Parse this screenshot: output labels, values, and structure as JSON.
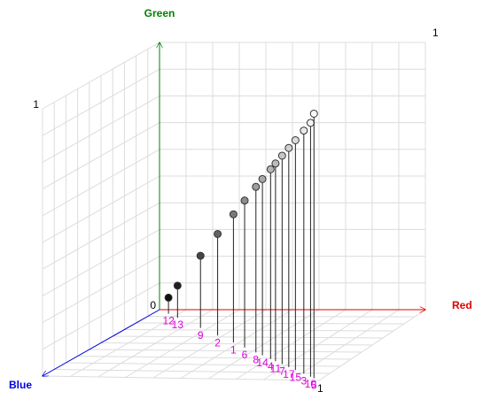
{
  "chart_data": {
    "type": "scatter3d",
    "axes": {
      "red": {
        "title": "Red",
        "color": "#e00000",
        "lim": [
          0,
          1
        ],
        "ticks": [
          1
        ]
      },
      "green": {
        "title": "Green",
        "color": "#008000",
        "lim": [
          0,
          1
        ],
        "ticks": [
          0,
          1
        ]
      },
      "blue": {
        "title": "Blue",
        "color": "#0000e0",
        "lim": [
          0,
          1
        ],
        "ticks": [
          1
        ]
      }
    },
    "label_color": "#e000e0",
    "points": [
      {
        "label": "12",
        "red": 0.06,
        "green": 0.06,
        "blue": 0.06
      },
      {
        "label": "13",
        "red": 0.12,
        "green": 0.12,
        "blue": 0.12
      },
      {
        "label": "9",
        "red": 0.27,
        "green": 0.27,
        "blue": 0.27
      },
      {
        "label": "2",
        "red": 0.38,
        "green": 0.38,
        "blue": 0.38
      },
      {
        "label": "1",
        "red": 0.48,
        "green": 0.48,
        "blue": 0.48
      },
      {
        "label": "6",
        "red": 0.55,
        "green": 0.55,
        "blue": 0.55
      },
      {
        "label": "8",
        "red": 0.62,
        "green": 0.62,
        "blue": 0.62
      },
      {
        "label": "14",
        "red": 0.66,
        "green": 0.66,
        "blue": 0.66
      },
      {
        "label": "4",
        "red": 0.71,
        "green": 0.71,
        "blue": 0.71
      },
      {
        "label": "11",
        "red": 0.74,
        "green": 0.74,
        "blue": 0.74
      },
      {
        "label": "7",
        "red": 0.78,
        "green": 0.78,
        "blue": 0.78
      },
      {
        "label": "17",
        "red": 0.82,
        "green": 0.82,
        "blue": 0.82
      },
      {
        "label": "15",
        "red": 0.86,
        "green": 0.86,
        "blue": 0.86
      },
      {
        "label": "3",
        "red": 0.91,
        "green": 0.91,
        "blue": 0.91
      },
      {
        "label": "10",
        "red": 0.95,
        "green": 0.95,
        "blue": 0.95
      },
      {
        "label": "5",
        "red": 0.97,
        "green": 0.99,
        "blue": 0.97
      }
    ]
  }
}
